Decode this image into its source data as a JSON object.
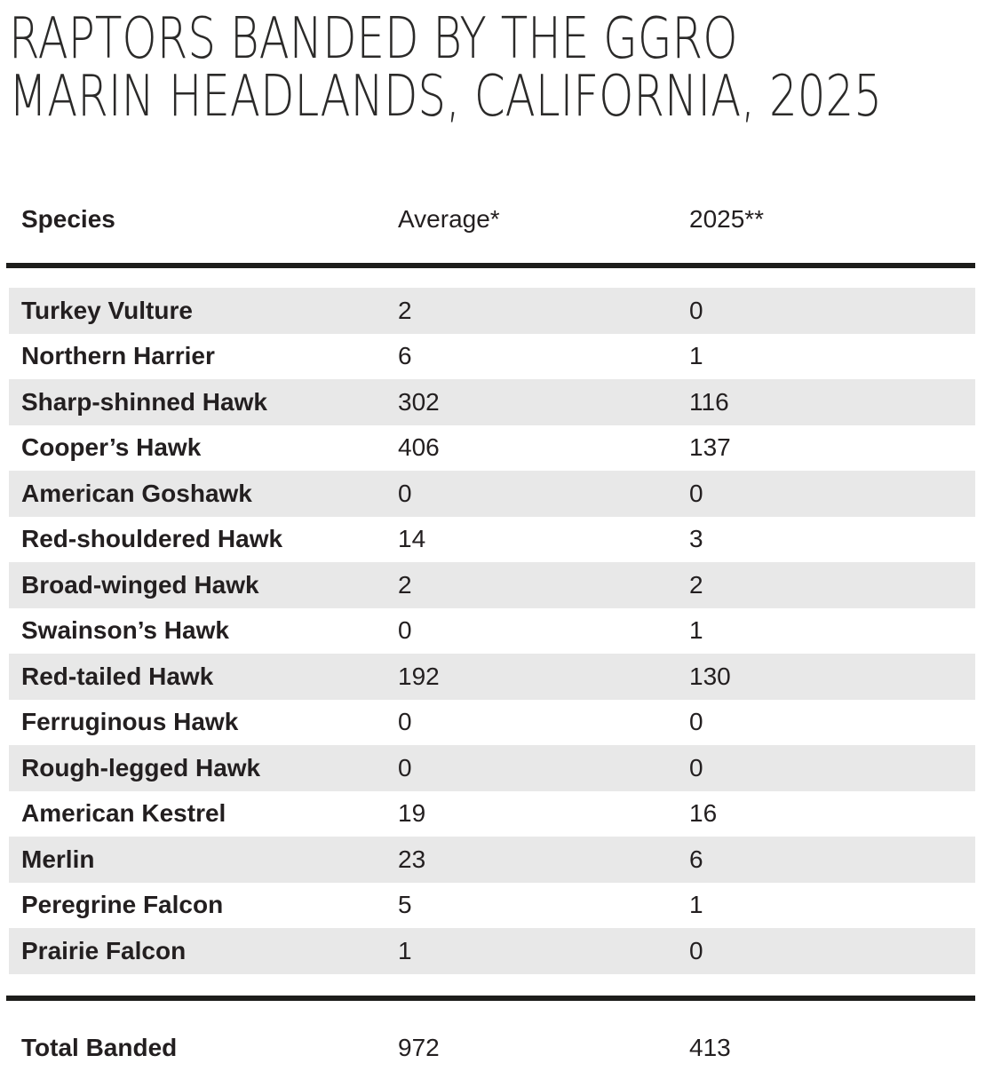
{
  "title": {
    "line1": "RAPTORS BANDED BY THE GGRO",
    "line2": "MARIN HEADLANDS, CALIFORNIA, 2025"
  },
  "table": {
    "column_headers": {
      "species": "Species",
      "average": "Average*",
      "year": "2025**"
    },
    "rows": [
      {
        "species": "Turkey Vulture",
        "average": "2",
        "year": "0"
      },
      {
        "species": "Northern Harrier",
        "average": "6",
        "year": "1"
      },
      {
        "species": "Sharp-shinned Hawk",
        "average": "302",
        "year": "116"
      },
      {
        "species": "Cooper’s Hawk",
        "average": "406",
        "year": "137"
      },
      {
        "species": "American Goshawk",
        "average": "0",
        "year": "0"
      },
      {
        "species": "Red-shouldered Hawk",
        "average": "14",
        "year": "3"
      },
      {
        "species": "Broad-winged Hawk",
        "average": "2",
        "year": "2"
      },
      {
        "species": "Swainson’s Hawk",
        "average": "0",
        "year": "1"
      },
      {
        "species": "Red-tailed Hawk",
        "average": "192",
        "year": "130"
      },
      {
        "species": "Ferruginous Hawk",
        "average": "0",
        "year": "0"
      },
      {
        "species": "Rough-legged Hawk",
        "average": "0",
        "year": "0"
      },
      {
        "species": "American Kestrel",
        "average": "19",
        "year": "16"
      },
      {
        "species": "Merlin",
        "average": "23",
        "year": "6"
      },
      {
        "species": "Peregrine Falcon",
        "average": "5",
        "year": "1"
      },
      {
        "species": "Prairie Falcon",
        "average": "1",
        "year": "0"
      }
    ],
    "total": {
      "label": "Total Banded",
      "average": "972",
      "year": "413"
    }
  },
  "colors": {
    "background": "#ffffff",
    "stripe": "#e8e8e8",
    "text": "#231f20",
    "rule": "#1d1d1b"
  },
  "chart_data": {
    "type": "table",
    "title": "RAPTORS BANDED BY THE GGRO — MARIN HEADLANDS, CALIFORNIA, 2025",
    "columns": [
      "Species",
      "Average*",
      "2025**"
    ],
    "categories": [
      "Turkey Vulture",
      "Northern Harrier",
      "Sharp-shinned Hawk",
      "Cooper’s Hawk",
      "American Goshawk",
      "Red-shouldered Hawk",
      "Broad-winged Hawk",
      "Swainson’s Hawk",
      "Red-tailed Hawk",
      "Ferruginous Hawk",
      "Rough-legged Hawk",
      "American Kestrel",
      "Merlin",
      "Peregrine Falcon",
      "Prairie Falcon"
    ],
    "series": [
      {
        "name": "Average*",
        "values": [
          2,
          6,
          302,
          406,
          0,
          14,
          2,
          0,
          192,
          0,
          0,
          19,
          23,
          5,
          1
        ]
      },
      {
        "name": "2025**",
        "values": [
          0,
          1,
          116,
          137,
          0,
          3,
          2,
          1,
          130,
          0,
          0,
          16,
          6,
          1,
          0
        ]
      }
    ],
    "totals": {
      "label": "Total Banded",
      "average": 972,
      "year_2025": 413
    },
    "layout": {
      "striped_rows": true,
      "stripe_on_odd_rows": true,
      "rules": "thick black rule below header and above total"
    }
  }
}
